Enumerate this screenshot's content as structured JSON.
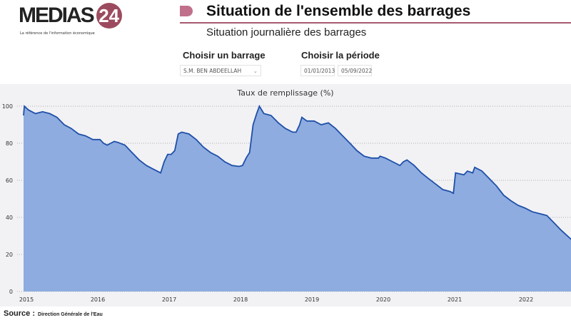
{
  "header": {
    "logo_text": "MEDIAS",
    "logo_number": "24",
    "tagline": "La référence de l'information économique",
    "title": "Situation de l'ensemble des barrages",
    "subtitle": "Situation journalière des barrages",
    "accent": "#a4596f"
  },
  "filters": {
    "dam_label": "Choisir un barrage",
    "dam_value": "S.M. BEN ABDEELLAH",
    "period_label": "Choisir la période",
    "period_start": "01/01/2013",
    "period_end": "05/09/2022"
  },
  "source": {
    "label": "Source :",
    "value": "Direction Générale de l'Eau"
  },
  "chart_data": {
    "type": "area",
    "title": "Taux de remplissage (%)",
    "xlabel": "",
    "ylabel": "",
    "ylim": [
      0,
      100
    ],
    "yticks": [
      0,
      20,
      40,
      60,
      80,
      100
    ],
    "xticks": [
      "2015",
      "2016",
      "2017",
      "2018",
      "2019",
      "2020",
      "2021",
      "2022"
    ],
    "grid": true,
    "line_color": "#1f4fa8",
    "fill_color": "#8eacdf",
    "points": [
      [
        "2015-01-01",
        95
      ],
      [
        "2015-01-05",
        100
      ],
      [
        "2015-01-26",
        98
      ],
      [
        "2015-03-03",
        96
      ],
      [
        "2015-04-08",
        97
      ],
      [
        "2015-05-15",
        96
      ],
      [
        "2015-06-21",
        94
      ],
      [
        "2015-07-28",
        90
      ],
      [
        "2015-09-02",
        88
      ],
      [
        "2015-10-09",
        85
      ],
      [
        "2015-11-14",
        84
      ],
      [
        "2015-12-21",
        82
      ],
      [
        "2016-01-27",
        82
      ],
      [
        "2016-02-14",
        80
      ],
      [
        "2016-03-04",
        79
      ],
      [
        "2016-03-22",
        80
      ],
      [
        "2016-04-09",
        81
      ],
      [
        "2016-04-27",
        80.5
      ],
      [
        "2016-06-03",
        79
      ],
      [
        "2016-07-09",
        75
      ],
      [
        "2016-08-15",
        71
      ],
      [
        "2016-09-21",
        68
      ],
      [
        "2016-10-27",
        66
      ],
      [
        "2016-12-03",
        64
      ],
      [
        "2016-12-21",
        70
      ],
      [
        "2017-01-08",
        74
      ],
      [
        "2017-01-26",
        74
      ],
      [
        "2017-02-13",
        76
      ],
      [
        "2017-03-03",
        85
      ],
      [
        "2017-03-21",
        86
      ],
      [
        "2017-04-27",
        85
      ],
      [
        "2017-06-03",
        82
      ],
      [
        "2017-07-09",
        78
      ],
      [
        "2017-08-15",
        75
      ],
      [
        "2017-09-21",
        73
      ],
      [
        "2017-10-27",
        70
      ],
      [
        "2017-12-03",
        68
      ],
      [
        "2018-01-08",
        67.5
      ],
      [
        "2018-01-26",
        68
      ],
      [
        "2018-02-13",
        72
      ],
      [
        "2018-03-03",
        75
      ],
      [
        "2018-03-21",
        90
      ],
      [
        "2018-04-08",
        96
      ],
      [
        "2018-04-22",
        100
      ],
      [
        "2018-05-15",
        96
      ],
      [
        "2018-06-21",
        95
      ],
      [
        "2018-07-28",
        91
      ],
      [
        "2018-09-02",
        88
      ],
      [
        "2018-10-09",
        86
      ],
      [
        "2018-10-27",
        86
      ],
      [
        "2018-11-14",
        90
      ],
      [
        "2018-11-25",
        94
      ],
      [
        "2018-12-21",
        92
      ],
      [
        "2019-01-27",
        92
      ],
      [
        "2019-03-04",
        90
      ],
      [
        "2019-04-10",
        91
      ],
      [
        "2019-05-16",
        88
      ],
      [
        "2019-06-22",
        84
      ],
      [
        "2019-07-29",
        80
      ],
      [
        "2019-09-03",
        76
      ],
      [
        "2019-10-10",
        73
      ],
      [
        "2019-11-16",
        72
      ],
      [
        "2019-12-22",
        72
      ],
      [
        "2019-12-30",
        73
      ],
      [
        "2020-01-27",
        72
      ],
      [
        "2020-03-04",
        70
      ],
      [
        "2020-04-10",
        68
      ],
      [
        "2020-04-28",
        70
      ],
      [
        "2020-05-16",
        71
      ],
      [
        "2020-06-22",
        68
      ],
      [
        "2020-07-29",
        64
      ],
      [
        "2020-09-03",
        61
      ],
      [
        "2020-10-10",
        58
      ],
      [
        "2020-11-16",
        55
      ],
      [
        "2020-12-22",
        54
      ],
      [
        "2021-01-09",
        53
      ],
      [
        "2021-01-20",
        64
      ],
      [
        "2021-03-04",
        63
      ],
      [
        "2021-03-22",
        65
      ],
      [
        "2021-04-18",
        64
      ],
      [
        "2021-04-28",
        67
      ],
      [
        "2021-06-04",
        65
      ],
      [
        "2021-07-11",
        61
      ],
      [
        "2021-08-17",
        57
      ],
      [
        "2021-09-23",
        52
      ],
      [
        "2021-10-30",
        49
      ],
      [
        "2021-12-06",
        46.5
      ],
      [
        "2022-01-11",
        45
      ],
      [
        "2022-02-17",
        43
      ],
      [
        "2022-03-26",
        42
      ],
      [
        "2022-05-02",
        41
      ],
      [
        "2022-06-08",
        37
      ],
      [
        "2022-07-15",
        33
      ],
      [
        "2022-09-05",
        28
      ]
    ]
  }
}
